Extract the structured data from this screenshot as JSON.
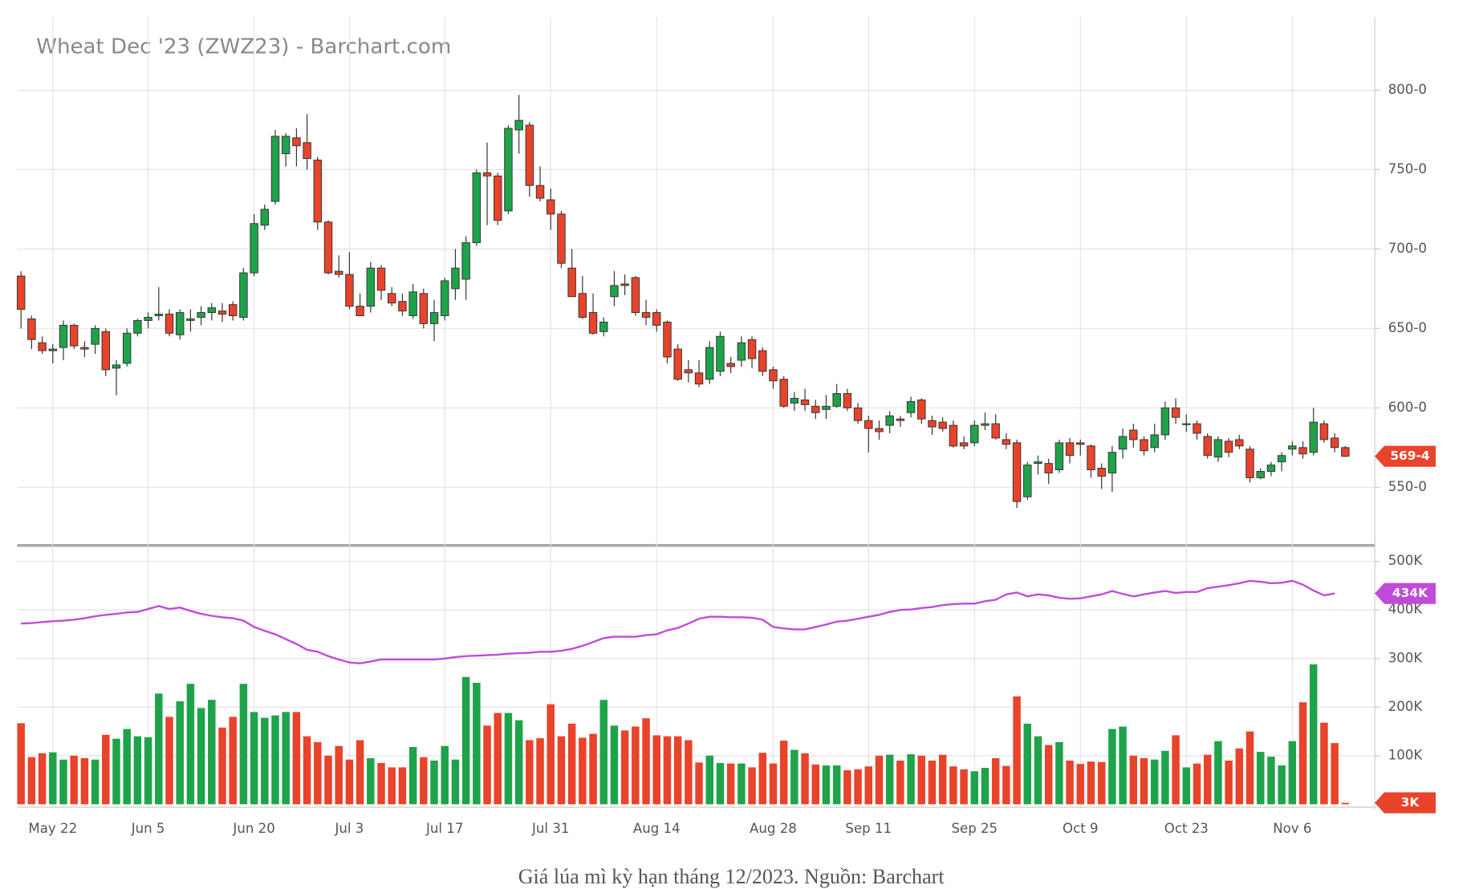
{
  "chart_data": {
    "type": "candlestick",
    "title": "Wheat Dec '23 (ZWZ23) - Barchart.com",
    "caption": "Giá lúa mì kỳ hạn tháng 12/2023. Nguồn: Barchart",
    "categories": [
      null,
      null,
      null,
      "May 22",
      null,
      null,
      null,
      null,
      null,
      null,
      null,
      null,
      "Jun 5",
      null,
      null,
      null,
      null,
      null,
      null,
      null,
      null,
      null,
      "Jun 20",
      null,
      null,
      null,
      null,
      null,
      null,
      null,
      null,
      "Jul 3",
      null,
      null,
      null,
      null,
      null,
      null,
      null,
      null,
      "Jul 17",
      null,
      null,
      null,
      null,
      null,
      null,
      null,
      null,
      null,
      "Jul 31",
      null,
      null,
      null,
      null,
      null,
      null,
      null,
      null,
      null,
      "Aug 14",
      null,
      null,
      null,
      null,
      null,
      null,
      null,
      null,
      null,
      null,
      "Aug 28",
      null,
      null,
      null,
      null,
      null,
      null,
      null,
      null,
      "Sep 11",
      null,
      null,
      null,
      null,
      null,
      null,
      null,
      null,
      null,
      "Sep 25",
      null,
      null,
      null,
      null,
      null,
      null,
      null,
      null,
      null,
      "Oct 9",
      null,
      null,
      null,
      null,
      null,
      null,
      null,
      null,
      null,
      "Oct 23",
      null,
      null,
      null,
      null,
      null,
      null,
      null,
      null,
      null,
      "Nov 6",
      null,
      null,
      null,
      null,
      null
    ],
    "ohlc": [
      [
        683,
        686,
        650,
        662
      ],
      [
        656,
        658,
        637,
        643
      ],
      [
        641,
        645,
        634,
        636
      ],
      [
        636,
        640,
        628,
        637
      ],
      [
        638,
        655,
        630,
        652
      ],
      [
        652,
        653,
        637,
        639
      ],
      [
        638,
        642,
        632,
        637
      ],
      [
        640,
        652,
        634,
        650
      ],
      [
        648,
        650,
        620,
        624
      ],
      [
        625,
        630,
        608,
        627
      ],
      [
        628,
        650,
        626,
        647
      ],
      [
        647,
        656,
        645,
        655
      ],
      [
        655,
        660,
        650,
        657
      ],
      [
        658,
        676,
        655,
        659
      ],
      [
        659,
        662,
        645,
        647
      ],
      [
        646,
        662,
        643,
        660
      ],
      [
        655,
        662,
        648,
        656
      ],
      [
        657,
        664,
        652,
        660
      ],
      [
        660,
        666,
        655,
        663
      ],
      [
        661,
        666,
        654,
        659
      ],
      [
        665,
        667,
        655,
        658
      ],
      [
        657,
        688,
        655,
        685
      ],
      [
        685,
        722,
        683,
        716
      ],
      [
        715,
        728,
        712,
        725
      ],
      [
        730,
        775,
        728,
        771
      ],
      [
        760,
        773,
        752,
        771
      ],
      [
        770,
        776,
        752,
        765
      ],
      [
        767,
        785,
        750,
        757
      ],
      [
        756,
        758,
        712,
        717
      ],
      [
        717,
        718,
        684,
        685
      ],
      [
        686,
        696,
        682,
        684
      ],
      [
        684,
        698,
        662,
        664
      ],
      [
        664,
        672,
        658,
        658
      ],
      [
        664,
        692,
        660,
        688
      ],
      [
        688,
        690,
        668,
        674
      ],
      [
        672,
        676,
        664,
        666
      ],
      [
        667,
        672,
        658,
        661
      ],
      [
        658,
        678,
        656,
        673
      ],
      [
        672,
        675,
        650,
        653
      ],
      [
        653,
        668,
        642,
        660
      ],
      [
        658,
        682,
        655,
        680
      ],
      [
        675,
        700,
        668,
        688
      ],
      [
        681,
        708,
        668,
        704
      ],
      [
        704,
        750,
        702,
        748
      ],
      [
        748,
        767,
        715,
        746
      ],
      [
        746,
        748,
        715,
        718
      ],
      [
        724,
        778,
        722,
        776
      ],
      [
        775,
        797,
        760,
        781
      ],
      [
        778,
        780,
        733,
        740
      ],
      [
        740,
        752,
        730,
        732
      ],
      [
        731,
        738,
        712,
        722
      ],
      [
        722,
        724,
        688,
        691
      ],
      [
        688,
        700,
        670,
        670
      ],
      [
        672,
        683,
        656,
        657
      ],
      [
        660,
        672,
        646,
        647
      ],
      [
        648,
        657,
        645,
        654
      ],
      [
        670,
        686,
        664,
        677
      ],
      [
        678,
        684,
        671,
        677
      ],
      [
        682,
        683,
        658,
        660
      ],
      [
        660,
        668,
        652,
        657
      ],
      [
        660,
        662,
        648,
        652
      ],
      [
        654,
        655,
        628,
        632
      ],
      [
        637,
        640,
        617,
        618
      ],
      [
        624,
        630,
        616,
        622
      ],
      [
        622,
        630,
        613,
        615
      ],
      [
        618,
        642,
        615,
        638
      ],
      [
        623,
        648,
        620,
        645
      ],
      [
        628,
        632,
        622,
        626
      ],
      [
        630,
        645,
        626,
        641
      ],
      [
        643,
        645,
        625,
        631
      ],
      [
        636,
        638,
        620,
        623
      ],
      [
        624,
        626,
        612,
        617
      ],
      [
        618,
        620,
        600,
        601
      ],
      [
        603,
        610,
        598,
        606
      ],
      [
        605,
        612,
        598,
        602
      ],
      [
        601,
        605,
        593,
        597
      ],
      [
        599,
        608,
        593,
        601
      ],
      [
        601,
        615,
        600,
        609
      ],
      [
        609,
        612,
        598,
        600
      ],
      [
        600,
        603,
        590,
        592
      ],
      [
        592,
        595,
        572,
        587
      ],
      [
        587,
        592,
        580,
        585
      ],
      [
        589,
        598,
        584,
        595
      ],
      [
        593,
        595,
        588,
        592
      ],
      [
        597,
        607,
        594,
        604
      ],
      [
        605,
        606,
        590,
        593
      ],
      [
        592,
        595,
        583,
        588
      ],
      [
        591,
        594,
        585,
        587
      ],
      [
        589,
        592,
        575,
        576
      ],
      [
        578,
        582,
        574,
        576
      ],
      [
        578,
        592,
        576,
        589
      ],
      [
        589,
        597,
        586,
        590
      ],
      [
        590,
        596,
        580,
        581
      ],
      [
        580,
        584,
        574,
        577
      ],
      [
        578,
        580,
        537,
        541
      ],
      [
        544,
        566,
        542,
        564
      ],
      [
        565,
        570,
        558,
        566
      ],
      [
        565,
        568,
        552,
        559
      ],
      [
        561,
        580,
        559,
        578
      ],
      [
        578,
        581,
        565,
        570
      ],
      [
        578,
        580,
        570,
        577
      ],
      [
        576,
        577,
        556,
        561
      ],
      [
        562,
        565,
        549,
        557
      ],
      [
        559,
        576,
        547,
        572
      ],
      [
        574,
        587,
        568,
        582
      ],
      [
        586,
        590,
        575,
        580
      ],
      [
        580,
        582,
        570,
        573
      ],
      [
        575,
        590,
        572,
        583
      ],
      [
        583,
        604,
        580,
        600
      ],
      [
        600,
        606,
        590,
        594
      ],
      [
        590,
        596,
        585,
        590
      ],
      [
        590,
        592,
        580,
        584
      ],
      [
        582,
        584,
        568,
        570
      ],
      [
        569,
        582,
        566,
        580
      ],
      [
        579,
        581,
        569,
        572
      ],
      [
        580,
        583,
        574,
        576
      ],
      [
        574,
        576,
        553,
        556
      ],
      [
        556,
        562,
        555,
        560
      ],
      [
        560,
        566,
        557,
        564
      ],
      [
        566,
        572,
        560,
        570
      ],
      [
        574,
        579,
        570,
        576
      ],
      [
        575,
        579,
        568,
        571
      ],
      [
        572,
        600,
        570,
        591
      ],
      [
        590,
        592,
        578,
        580
      ],
      [
        581,
        584,
        572,
        575
      ],
      [
        575,
        576,
        569,
        569.5
      ]
    ],
    "volume": [
      167,
      97,
      105,
      107,
      92,
      100,
      95,
      92,
      143,
      135,
      155,
      140,
      138,
      228,
      180,
      212,
      248,
      198,
      215,
      158,
      180,
      248,
      190,
      178,
      183,
      190,
      190,
      140,
      128,
      100,
      120,
      92,
      132,
      95,
      85,
      76,
      76,
      118,
      97,
      90,
      120,
      92,
      262,
      250,
      162,
      188,
      188,
      173,
      132,
      136,
      206,
      140,
      166,
      137,
      145,
      215,
      162,
      152,
      160,
      177,
      142,
      140,
      140,
      132,
      86,
      100,
      85,
      84,
      84,
      76,
      106,
      84,
      131,
      112,
      105,
      82,
      80,
      80,
      70,
      72,
      78,
      100,
      102,
      90,
      103,
      100,
      90,
      102,
      78,
      72,
      68,
      75,
      95,
      79,
      222,
      166,
      140,
      122,
      128,
      90,
      83,
      88,
      87,
      155,
      160,
      100,
      95,
      92,
      110,
      142,
      76,
      84,
      102,
      130,
      90,
      115,
      150,
      108,
      98,
      80,
      130,
      210,
      288,
      168,
      126,
      3
    ],
    "open_interest": [
      372,
      373,
      375,
      377,
      378,
      380,
      383,
      387,
      390,
      392,
      395,
      396,
      402,
      408,
      402,
      405,
      398,
      392,
      388,
      385,
      383,
      378,
      365,
      357,
      350,
      340,
      330,
      318,
      314,
      305,
      298,
      292,
      290,
      294,
      298,
      298,
      298,
      298,
      298,
      298,
      300,
      303,
      305,
      306,
      307,
      308,
      310,
      311,
      312,
      314,
      314,
      316,
      320,
      326,
      334,
      342,
      345,
      345,
      345,
      348,
      350,
      358,
      363,
      372,
      382,
      386,
      386,
      385,
      385,
      384,
      380,
      365,
      362,
      360,
      360,
      365,
      370,
      376,
      378,
      382,
      386,
      390,
      396,
      400,
      401,
      404,
      406,
      410,
      412,
      413,
      413,
      418,
      421,
      432,
      436,
      428,
      432,
      430,
      425,
      423,
      424,
      428,
      432,
      439,
      433,
      428,
      432,
      436,
      439,
      435,
      437,
      437,
      445,
      448,
      451,
      455,
      460,
      458,
      455,
      456,
      460,
      452,
      440,
      430,
      434,
      null
    ],
    "ylim": [
      514,
      846
    ],
    "yticks": [
      {
        "value": 550,
        "label": "550-0"
      },
      {
        "value": 600,
        "label": "600-0"
      },
      {
        "value": 650,
        "label": "650-0"
      },
      {
        "value": 700,
        "label": "700-0"
      },
      {
        "value": 750,
        "label": "750-0"
      },
      {
        "value": 800,
        "label": "800-0"
      }
    ],
    "y2lim": [
      0,
      529
    ],
    "y2ticks": [
      {
        "value": 100,
        "label": "100K"
      },
      {
        "value": 200,
        "label": "200K"
      },
      {
        "value": 300,
        "label": "300K"
      },
      {
        "value": 400,
        "label": "400K"
      },
      {
        "value": 500,
        "label": "500K"
      }
    ],
    "last_price": {
      "value": 569.5,
      "label": "569-4"
    },
    "last_open_interest": {
      "value": 434,
      "label": "434K"
    },
    "last_volume": {
      "value": 3,
      "label": "3K"
    },
    "up_color": "#1fa34a",
    "down_color": "#e8432b",
    "oi_color": "#c04bd8",
    "grid": true
  }
}
